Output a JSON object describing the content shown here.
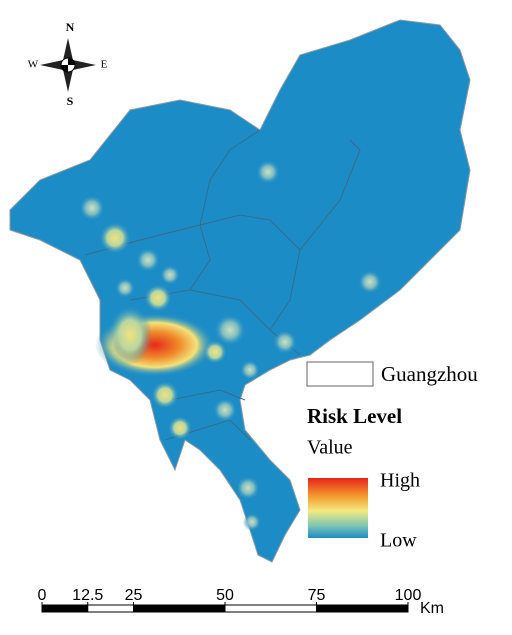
{
  "compass": {
    "north": "N",
    "south": "S",
    "east": "E",
    "west": "W"
  },
  "legend": {
    "boundary": "Guangzhou",
    "title": "Risk Level",
    "subtitle": "Value",
    "high": "High",
    "low": "Low"
  },
  "scale_bar": {
    "ticks": [
      0,
      12.5,
      25,
      50,
      75,
      100
    ],
    "unit": "Km"
  }
}
